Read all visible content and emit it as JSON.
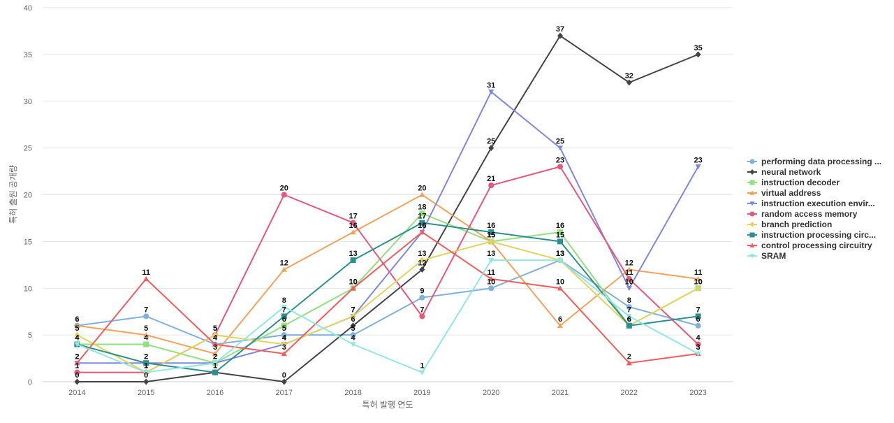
{
  "chart_data": {
    "type": "line",
    "title": "",
    "xlabel": "특허 발행 연도",
    "ylabel": "특허 출원 공개량",
    "categories": [
      "2014",
      "2015",
      "2016",
      "2017",
      "2018",
      "2019",
      "2020",
      "2021",
      "2022",
      "2023"
    ],
    "ylim": [
      0,
      40
    ],
    "yticks": [
      0,
      5,
      10,
      15,
      20,
      25,
      30,
      35,
      40
    ],
    "grid": true,
    "legend_position": "right",
    "series": [
      {
        "name": "performing data processing ...",
        "color": "#7eb0e0",
        "marker": "circle",
        "values": [
          6,
          7,
          4,
          5,
          5,
          9,
          10,
          13,
          8,
          6
        ]
      },
      {
        "name": "neural network",
        "color": "#434348",
        "marker": "diamond",
        "values": [
          0,
          0,
          1,
          0,
          6,
          12,
          25,
          37,
          32,
          35
        ]
      },
      {
        "name": "instruction decoder",
        "color": "#90e07e",
        "marker": "square",
        "values": [
          4,
          4,
          2,
          6,
          10,
          18,
          15,
          16,
          6,
          10
        ]
      },
      {
        "name": "virtual address",
        "color": "#f4a15a",
        "marker": "triangle",
        "values": [
          6,
          5,
          3,
          12,
          16,
          20,
          15,
          6,
          12,
          11
        ]
      },
      {
        "name": "instruction execution envir...",
        "color": "#8087e0",
        "marker": "triangle-down",
        "values": [
          2,
          2,
          2,
          4,
          7,
          16,
          31,
          25,
          10,
          23
        ]
      },
      {
        "name": "random access memory",
        "color": "#e8577a",
        "marker": "circle",
        "values": [
          1,
          1,
          5,
          20,
          17,
          7,
          21,
          23,
          11,
          4
        ]
      },
      {
        "name": "branch prediction",
        "color": "#e4d35c",
        "marker": "diamond",
        "values": [
          5,
          1,
          5,
          4,
          7,
          13,
          15,
          13,
          6,
          10
        ]
      },
      {
        "name": "instruction processing circ...",
        "color": "#2b908f",
        "marker": "square",
        "values": [
          4,
          2,
          1,
          7,
          13,
          17,
          16,
          15,
          6,
          7
        ]
      },
      {
        "name": "control processing circuitry",
        "color": "#f15c5c",
        "marker": "triangle",
        "values": [
          2,
          11,
          4,
          3,
          10,
          16,
          11,
          10,
          2,
          3
        ]
      },
      {
        "name": "SRAM",
        "color": "#91e8e1",
        "marker": "triangle-down",
        "values": [
          4,
          1,
          2,
          8,
          4,
          1,
          13,
          13,
          7,
          3
        ]
      }
    ]
  }
}
